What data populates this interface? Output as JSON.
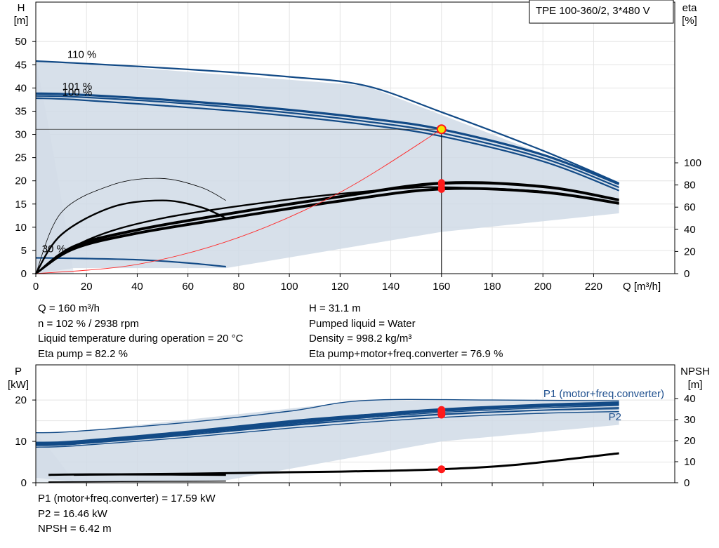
{
  "model_label": "TPE 100-360/2, 3*480 V",
  "operating_point": {
    "left": [
      "Q = 160 m³/h",
      "n = 102 % / 2938 rpm",
      "Liquid temperature during operation = 20 °C",
      "Eta pump = 82.2 %"
    ],
    "right": [
      "H = 31.1 m",
      "Pumped liquid = Water",
      "Density = 998.2 kg/m³",
      "Eta pump+motor+freq.converter = 76.9 %"
    ],
    "bottom": [
      "P1 (motor+freq.converter) = 17.59 kW",
      "P2 = 16.46 kW",
      "NPSH = 6.42 m"
    ]
  },
  "colors": {
    "curve_blue": "#124a86",
    "envelope_fill": "#d0dbe6",
    "envelope_edge": "#e6ecf2",
    "eta_black": "#000000",
    "system_curve": "#ff2a2a",
    "op_point": "#ff1a1a",
    "op_ring": "#f3e600",
    "label_blue": "#1e4f8e"
  },
  "chart_data": [
    {
      "type": "line",
      "name": "H-Q / eta-Q",
      "x_axis": {
        "label": "Q [m³/h]",
        "min": 0,
        "max": 252,
        "ticks": [
          0,
          20,
          40,
          60,
          80,
          100,
          120,
          140,
          160,
          180,
          200,
          220
        ]
      },
      "y_axis_left": {
        "label_top": "H",
        "label_unit": "[m]",
        "min": 0,
        "max": 58.5,
        "ticks": [
          0,
          5,
          10,
          15,
          20,
          25,
          30,
          35,
          40,
          45,
          50
        ]
      },
      "y_axis_right": {
        "label_top": "eta",
        "label_unit": "[%]",
        "min": 0,
        "max": 245,
        "ticks": [
          0,
          20,
          40,
          60,
          80,
          100
        ]
      },
      "speed_labels": [
        {
          "text": "110 %",
          "q": 8,
          "h": 46.5
        },
        {
          "text": "101 %",
          "q": 6,
          "h": 39.6
        },
        {
          "text": "100 %",
          "q": 6,
          "h": 38.3
        },
        {
          "text": "30 %",
          "q": -2,
          "h": 4.6
        }
      ],
      "envelope": [
        [
          0,
          45.8
        ],
        [
          15,
          45.4
        ],
        [
          130,
          40.5
        ],
        [
          230,
          19.5
        ],
        [
          230,
          13.0
        ],
        [
          160,
          9.0
        ],
        [
          75,
          1.2
        ],
        [
          15,
          1.2
        ],
        [
          0,
          0
        ]
      ],
      "head_curves": [
        {
          "speed": "110 %",
          "points": [
            [
              0,
              45.8
            ],
            [
              15,
              45.4
            ],
            [
              60,
              44.0
            ],
            [
              100,
              42.4
            ],
            [
              130,
              40.5
            ],
            [
              160,
              34.8
            ],
            [
              200,
              26.5
            ],
            [
              230,
              19.5
            ]
          ]
        },
        {
          "speed": "102 %",
          "points": [
            [
              0,
              38.8
            ],
            [
              15,
              38.6
            ],
            [
              50,
              37.5
            ],
            [
              90,
              35.8
            ],
            [
              130,
              33.5
            ],
            [
              160,
              31.1
            ],
            [
              200,
              25.6
            ],
            [
              230,
              19.3
            ]
          ]
        },
        {
          "speed": "101 %",
          "points": [
            [
              0,
              38.3
            ],
            [
              15,
              38.1
            ],
            [
              50,
              37.0
            ],
            [
              90,
              35.2
            ],
            [
              130,
              32.8
            ],
            [
              160,
              30.3
            ],
            [
              200,
              24.9
            ],
            [
              230,
              18.6
            ]
          ]
        },
        {
          "speed": "100 %",
          "points": [
            [
              0,
              37.8
            ],
            [
              15,
              37.5
            ],
            [
              50,
              36.2
            ],
            [
              90,
              34.5
            ],
            [
              130,
              32.1
            ],
            [
              160,
              29.6
            ],
            [
              200,
              24.2
            ],
            [
              230,
              17.9
            ]
          ]
        },
        {
          "speed": "30 %",
          "points": [
            [
              0,
              3.4
            ],
            [
              15,
              3.3
            ],
            [
              40,
              3.0
            ],
            [
              60,
              2.3
            ],
            [
              75,
              1.5
            ]
          ]
        }
      ],
      "eta_curves": [
        {
          "name": "eta pump 110%",
          "points": [
            [
              0,
              0
            ],
            [
              20,
              30
            ],
            [
              50,
              50
            ],
            [
              100,
              67
            ],
            [
              140,
              76
            ],
            [
              160,
              78
            ],
            [
              200,
              74
            ],
            [
              230,
              63
            ]
          ]
        },
        {
          "name": "eta pump",
          "points": [
            [
              0,
              0
            ],
            [
              15,
              25
            ],
            [
              40,
              40
            ],
            [
              80,
              56
            ],
            [
              120,
              70
            ],
            [
              160,
              82.2
            ],
            [
              200,
              79
            ],
            [
              230,
              67
            ]
          ]
        },
        {
          "name": "eta pump b",
          "points": [
            [
              0,
              0
            ],
            [
              15,
              24
            ],
            [
              40,
              39
            ],
            [
              80,
              55
            ],
            [
              120,
              69
            ],
            [
              160,
              81
            ],
            [
              200,
              78
            ],
            [
              230,
              66
            ]
          ]
        },
        {
          "name": "eta pump+motor+freq.converter",
          "points": [
            [
              0,
              0
            ],
            [
              15,
              23
            ],
            [
              40,
              37
            ],
            [
              80,
              52
            ],
            [
              120,
              66
            ],
            [
              160,
              76.9
            ],
            [
              200,
              74
            ],
            [
              230,
              64
            ]
          ]
        },
        {
          "name": "eta total b",
          "points": [
            [
              0,
              0
            ],
            [
              15,
              22
            ],
            [
              40,
              36
            ],
            [
              80,
              51
            ],
            [
              120,
              65
            ],
            [
              160,
              76
            ],
            [
              200,
              73
            ],
            [
              230,
              63
            ]
          ]
        },
        {
          "name": "eta 30% a",
          "points": [
            [
              0,
              0
            ],
            [
              10,
              35
            ],
            [
              30,
              60
            ],
            [
              50,
              66
            ],
            [
              65,
              60
            ],
            [
              75,
              50
            ]
          ]
        },
        {
          "name": "eta 30% b",
          "points": [
            [
              0,
              0
            ],
            [
              10,
              55
            ],
            [
              30,
              80
            ],
            [
              49,
              86
            ],
            [
              65,
              78
            ],
            [
              75,
              66
            ]
          ]
        }
      ],
      "system_curve": [
        [
          0,
          0
        ],
        [
          40,
          2.0
        ],
        [
          80,
          7.8
        ],
        [
          120,
          17.5
        ],
        [
          160,
          31.1
        ]
      ],
      "operating_point": {
        "q": 160,
        "h": 31.1,
        "eta_pump": 82.2,
        "eta_total": 76.9
      }
    },
    {
      "type": "line",
      "name": "P-Q / NPSH-Q",
      "x_axis": {
        "min": 0,
        "max": 252
      },
      "y_axis_left": {
        "label_top": "P",
        "label_unit": "[kW]",
        "min": 0,
        "max": 28.5,
        "ticks": [
          0,
          10,
          20
        ]
      },
      "y_axis_right": {
        "label_top": "NPSH",
        "label_unit": "[m]",
        "min": 0,
        "max": 56,
        "ticks": [
          0,
          10,
          20,
          30,
          40
        ]
      },
      "series_labels": [
        {
          "text": "P1 (motor+freq.converter)"
        },
        {
          "text": "P2"
        }
      ],
      "envelope": [
        [
          0,
          12.2
        ],
        [
          15,
          12.3
        ],
        [
          130,
          19.9
        ],
        [
          230,
          19.9
        ],
        [
          230,
          14.0
        ],
        [
          160,
          10.0
        ],
        [
          75,
          0.6
        ],
        [
          15,
          0.3
        ],
        [
          0,
          1.2
        ]
      ],
      "power_curves": [
        {
          "name": "P1 110%",
          "points": [
            [
              0,
              12.1
            ],
            [
              15,
              12.4
            ],
            [
              60,
              14.6
            ],
            [
              100,
              17.3
            ],
            [
              130,
              19.9
            ],
            [
              180,
              20.0
            ],
            [
              230,
              19.8
            ]
          ]
        },
        {
          "name": "P1 102%",
          "points": [
            [
              0,
              9.5
            ],
            [
              15,
              9.8
            ],
            [
              60,
              12.2
            ],
            [
              100,
              14.7
            ],
            [
              130,
              16.2
            ],
            [
              160,
              17.59
            ],
            [
              200,
              18.7
            ],
            [
              230,
              19.2
            ]
          ]
        },
        {
          "name": "P1 101%",
          "points": [
            [
              0,
              9.2
            ],
            [
              15,
              9.5
            ],
            [
              60,
              11.8
            ],
            [
              100,
              14.2
            ],
            [
              130,
              15.7
            ],
            [
              160,
              17.0
            ],
            [
              200,
              18.1
            ],
            [
              230,
              18.7
            ]
          ]
        },
        {
          "name": "P1 100%",
          "points": [
            [
              0,
              9.0
            ],
            [
              15,
              9.3
            ],
            [
              60,
              11.5
            ],
            [
              100,
              13.8
            ],
            [
              130,
              15.3
            ],
            [
              160,
              16.6
            ],
            [
              200,
              17.6
            ],
            [
              230,
              18.2
            ]
          ]
        },
        {
          "name": "P2 102%",
          "points": [
            [
              0,
              9.0
            ],
            [
              15,
              9.3
            ],
            [
              60,
              11.6
            ],
            [
              100,
              14.0
            ],
            [
              130,
              15.3
            ],
            [
              160,
              16.46
            ],
            [
              200,
              17.5
            ],
            [
              230,
              17.9
            ]
          ]
        },
        {
          "name": "P2 100%",
          "points": [
            [
              0,
              8.6
            ],
            [
              15,
              8.9
            ],
            [
              60,
              11.0
            ],
            [
              100,
              13.2
            ],
            [
              130,
              14.6
            ],
            [
              160,
              15.8
            ],
            [
              200,
              16.8
            ],
            [
              230,
              17.2
            ]
          ]
        },
        {
          "name": "P 30%",
          "points": [
            [
              5,
              1.9
            ],
            [
              15,
              2.0
            ],
            [
              50,
              2.0
            ],
            [
              75,
              1.9
            ]
          ]
        },
        {
          "name": "P2 30%",
          "points": [
            [
              5,
              0.2
            ],
            [
              40,
              0.3
            ],
            [
              75,
              0.4
            ]
          ]
        }
      ],
      "npsh_curve": [
        [
          15,
          3.8
        ],
        [
          60,
          4.3
        ],
        [
          100,
          5.0
        ],
        [
          130,
          5.5
        ],
        [
          160,
          6.42
        ],
        [
          190,
          8.6
        ],
        [
          230,
          14.0
        ]
      ],
      "operating_points": [
        {
          "name": "P1",
          "q": 160,
          "p": 17.59
        },
        {
          "name": "P1 b",
          "q": 160,
          "p": 17.0
        },
        {
          "name": "P2",
          "q": 160,
          "p": 16.46
        },
        {
          "name": "NPSH",
          "q": 160,
          "npsh": 6.42
        }
      ]
    }
  ]
}
